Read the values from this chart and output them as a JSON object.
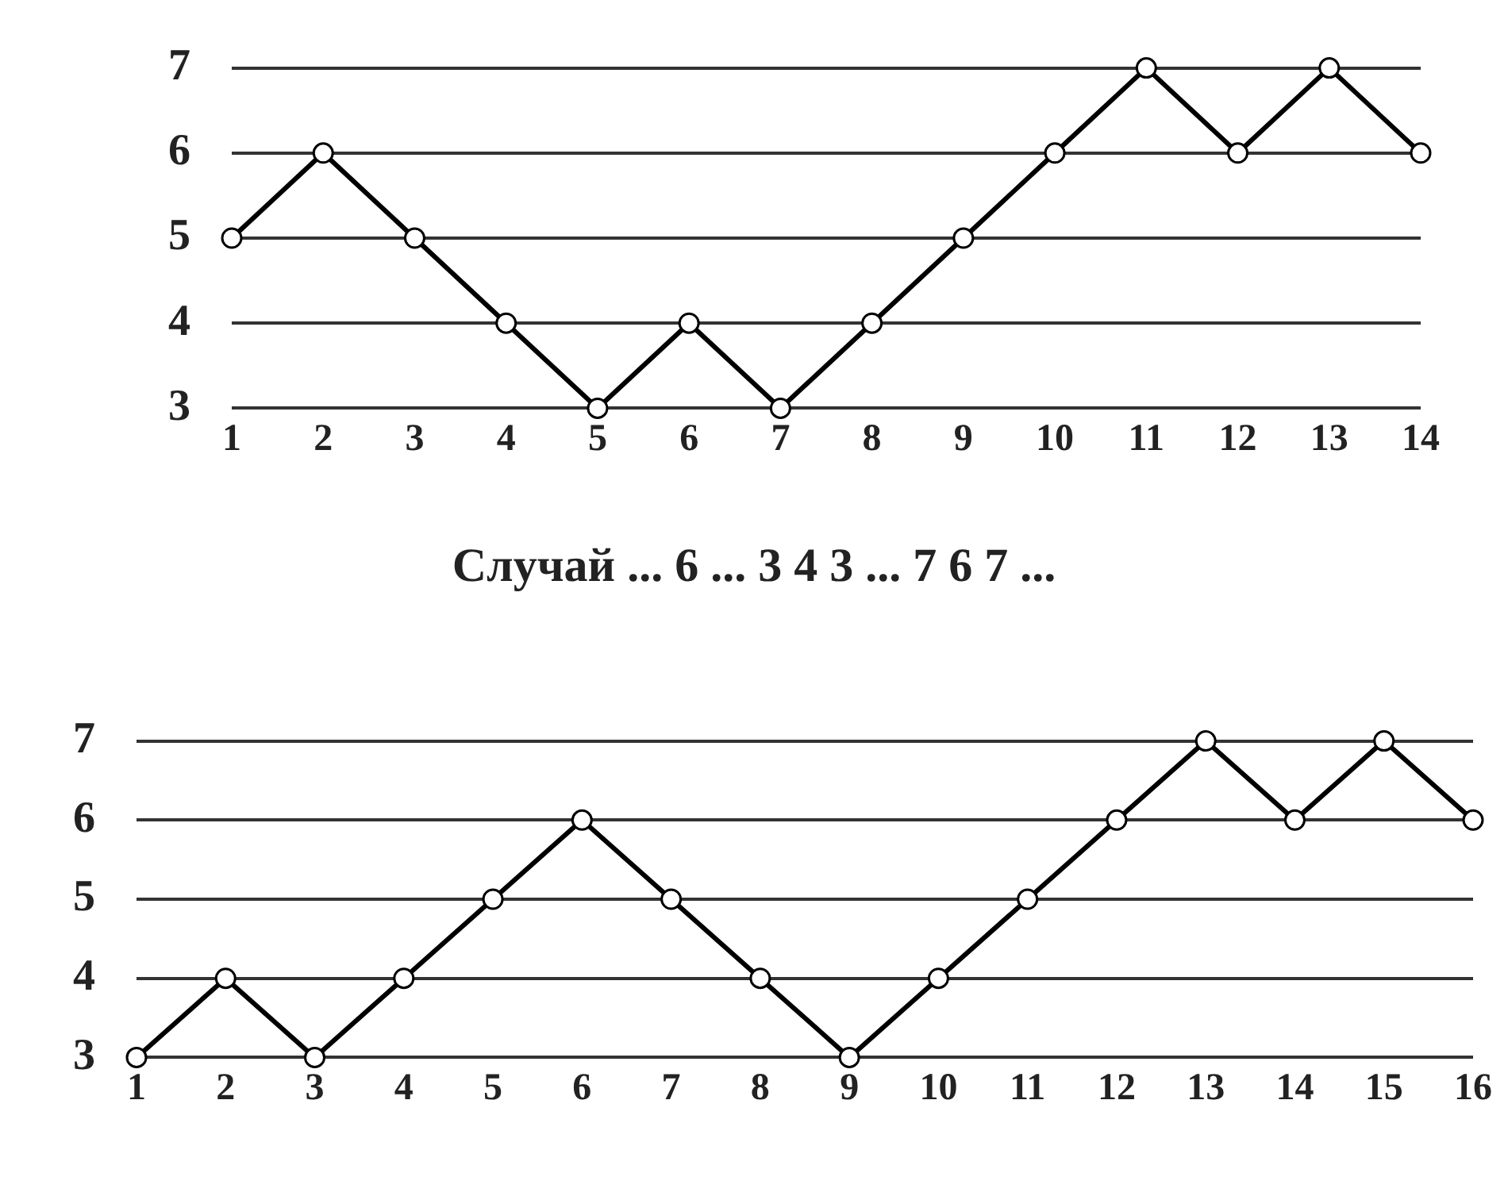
{
  "chart_data": [
    {
      "type": "line",
      "categories": [
        "1",
        "2",
        "3",
        "4",
        "5",
        "6",
        "7",
        "8",
        "9",
        "10",
        "11",
        "12",
        "13",
        "14"
      ],
      "series": [
        {
          "color": "#000000",
          "values": [
            5,
            6,
            5,
            4,
            3,
            4,
            3,
            4,
            5,
            6,
            7,
            6,
            7,
            6
          ]
        }
      ],
      "ylim": [
        3,
        7
      ],
      "yticks": [
        3,
        4,
        5,
        6,
        7
      ],
      "grid": "y",
      "marker": "circle",
      "legend": false,
      "annotations": [
        "Случай ... 6 ... 3 4 3 ... 7 6 7 ..."
      ]
    },
    {
      "type": "line",
      "categories": [
        "1",
        "2",
        "3",
        "4",
        "5",
        "6",
        "7",
        "8",
        "9",
        "10",
        "11",
        "12",
        "13",
        "14",
        "15",
        "16"
      ],
      "series": [
        {
          "color": "#000000",
          "values": [
            3,
            4,
            3,
            4,
            5,
            6,
            5,
            4,
            3,
            4,
            5,
            6,
            7,
            6,
            7,
            6
          ]
        }
      ],
      "ylim": [
        3,
        7
      ],
      "yticks": [
        3,
        4,
        5,
        6,
        7
      ],
      "grid": "y",
      "marker": "circle",
      "legend": false
    }
  ]
}
